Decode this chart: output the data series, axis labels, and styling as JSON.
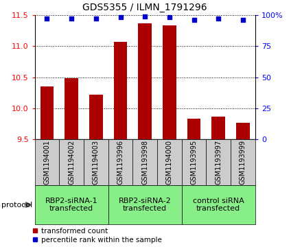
{
  "title": "GDS5355 / ILMN_1791296",
  "samples": [
    "GSM1194001",
    "GSM1194002",
    "GSM1194003",
    "GSM1193996",
    "GSM1193998",
    "GSM1194000",
    "GSM1193995",
    "GSM1193997",
    "GSM1193999"
  ],
  "bar_values": [
    10.35,
    10.48,
    10.22,
    11.07,
    11.37,
    11.33,
    9.83,
    9.87,
    9.77
  ],
  "dot_values": [
    97,
    97,
    97,
    98,
    99,
    98,
    96,
    97,
    96
  ],
  "ylim_left": [
    9.5,
    11.5
  ],
  "ylim_right": [
    0,
    100
  ],
  "yticks_left": [
    9.5,
    10.0,
    10.5,
    11.0,
    11.5
  ],
  "yticks_right": [
    0,
    25,
    50,
    75,
    100
  ],
  "bar_color": "#aa0000",
  "dot_color": "#0000cc",
  "dot_size": 18,
  "bar_width": 0.55,
  "groups": [
    {
      "label": "RBP2-siRNA-1\ntransfected",
      "start": 0,
      "end": 3,
      "color": "#88ee88"
    },
    {
      "label": "RBP2-siRNA-2\ntransfected",
      "start": 3,
      "end": 6,
      "color": "#88ee88"
    },
    {
      "label": "control siRNA\ntransfected",
      "start": 6,
      "end": 9,
      "color": "#88ee88"
    }
  ],
  "protocol_label": "protocol",
  "legend_bar_label": "transformed count",
  "legend_dot_label": "percentile rank within the sample",
  "sample_box_color": "#cccccc",
  "plot_bg_color": "#ffffff",
  "title_fontsize": 10,
  "axis_fontsize": 8,
  "sample_fontsize": 7,
  "group_fontsize": 8,
  "legend_fontsize": 7.5
}
